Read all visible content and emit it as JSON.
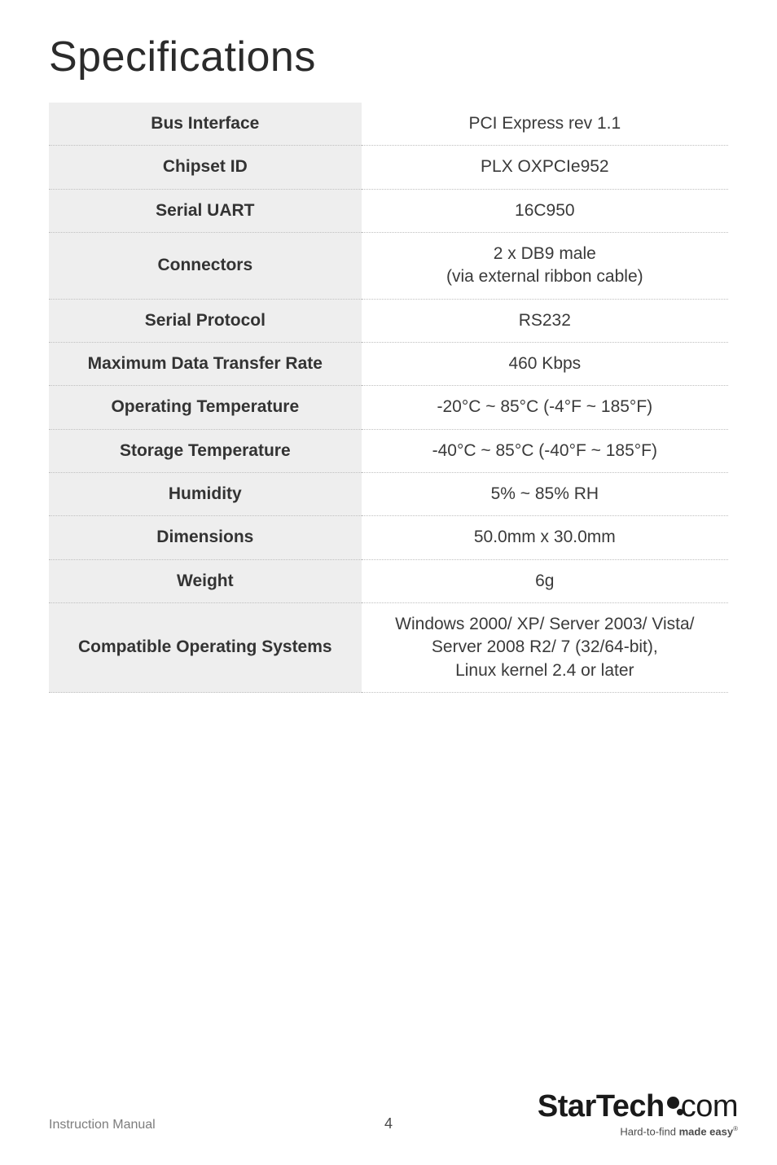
{
  "title": "Specifications",
  "table": {
    "rows": [
      {
        "label": "Bus Interface",
        "value": "PCI Express rev 1.1"
      },
      {
        "label": "Chipset ID",
        "value": "PLX OXPCIe952"
      },
      {
        "label": "Serial UART",
        "value": "16C950"
      },
      {
        "label": "Connectors",
        "value": "2 x DB9 male\n(via external ribbon cable)"
      },
      {
        "label": "Serial Protocol",
        "value": "RS232"
      },
      {
        "label": "Maximum Data Transfer Rate",
        "value": "460 Kbps"
      },
      {
        "label": "Operating Temperature",
        "value": "-20°C ~ 85°C (-4°F ~ 185°F)"
      },
      {
        "label": "Storage Temperature",
        "value": "-40°C ~ 85°C (-40°F ~ 185°F)"
      },
      {
        "label": "Humidity",
        "value": "5% ~ 85% RH"
      },
      {
        "label": "Dimensions",
        "value": "50.0mm x 30.0mm"
      },
      {
        "label": "Weight",
        "value": "6g"
      },
      {
        "label": "Compatible Operating Systems",
        "value": "Windows 2000/ XP/ Server 2003/ Vista/\nServer 2008 R2/ 7 (32/64-bit),\nLinux kernel 2.4 or later"
      }
    ],
    "label_bg": "#eeeeee",
    "value_bg": "#ffffff",
    "border_color": "#bfbfbf",
    "font_size": 21,
    "label_font_weight": 600
  },
  "footer": {
    "left": "Instruction Manual",
    "page_number": "4",
    "logo_main": "StarTech",
    "logo_suffix": ".com",
    "tagline_prefix": "Hard-to-find ",
    "tagline_bold": "made easy",
    "tagline_reg": "®"
  },
  "colors": {
    "page_bg": "#ffffff",
    "title_color": "#2b2b2b",
    "text_color": "#3a3a3a",
    "footer_text": "#7d7d7d"
  }
}
